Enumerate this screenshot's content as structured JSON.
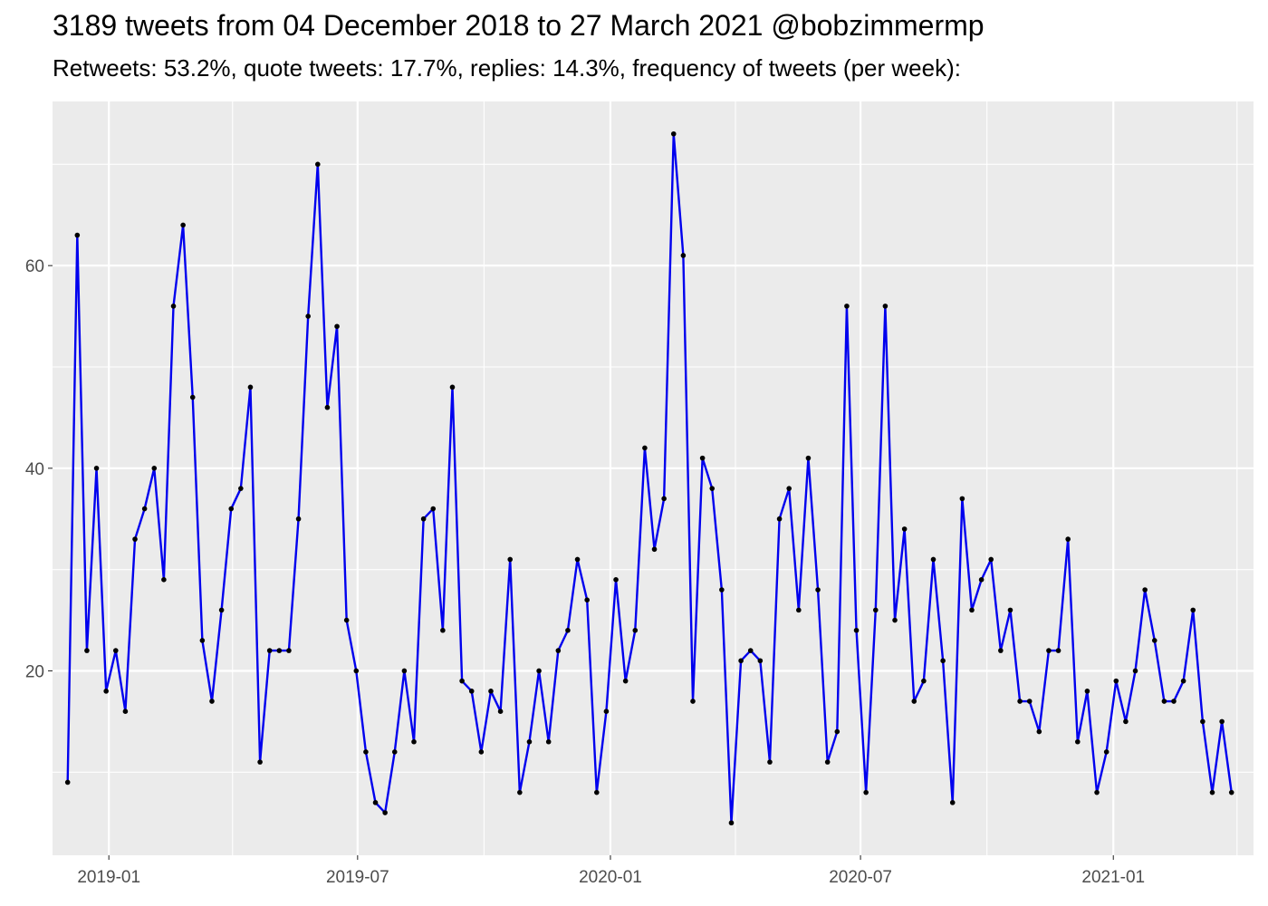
{
  "chart_data": {
    "type": "line",
    "title": "3189 tweets from 04 December 2018 to 27 March 2021 @bobzimmermp",
    "subtitle": "Retweets: 53.2%, quote tweets: 17.7%, replies: 14.3%, frequency of tweets (per week):",
    "xlabel": "",
    "ylabel": "",
    "x_start": "2018-12-02",
    "x_step_days": 7,
    "x_range": [
      "2018-11-21",
      "2021-04-13"
    ],
    "ylim": [
      1.8,
      76.2
    ],
    "y_ticks": [
      20,
      40,
      60
    ],
    "x_ticks": [
      {
        "date": "2019-01-01",
        "label": "2019-01"
      },
      {
        "date": "2019-07-01",
        "label": "2019-07"
      },
      {
        "date": "2020-01-01",
        "label": "2020-01"
      },
      {
        "date": "2020-07-01",
        "label": "2020-07"
      },
      {
        "date": "2021-01-01",
        "label": "2021-01"
      }
    ],
    "x_minor_ticks": [
      "2018-10-01",
      "2019-04-01",
      "2019-10-01",
      "2020-04-01",
      "2020-10-01",
      "2021-04-01"
    ],
    "grid": true,
    "line_color": "#0000ee",
    "point_color": "#000000",
    "panel_color": "#ebebeb",
    "values": [
      9,
      63,
      22,
      40,
      18,
      22,
      16,
      33,
      36,
      40,
      29,
      56,
      64,
      47,
      23,
      17,
      26,
      36,
      38,
      48,
      11,
      22,
      22,
      22,
      35,
      55,
      70,
      46,
      54,
      25,
      20,
      12,
      7,
      6,
      12,
      20,
      13,
      35,
      36,
      24,
      48,
      19,
      18,
      12,
      18,
      16,
      31,
      8,
      13,
      20,
      13,
      22,
      24,
      31,
      27,
      8,
      16,
      29,
      19,
      24,
      42,
      32,
      37,
      73,
      61,
      17,
      41,
      38,
      28,
      5,
      21,
      22,
      21,
      11,
      35,
      38,
      26,
      41,
      28,
      11,
      14,
      56,
      24,
      8,
      26,
      56,
      25,
      34,
      17,
      19,
      31,
      21,
      7,
      37,
      26,
      29,
      31,
      22,
      26,
      17,
      17,
      14,
      22,
      22,
      33,
      13,
      18,
      8,
      12,
      19,
      15,
      20,
      28,
      23,
      17,
      17,
      19,
      26,
      15,
      8,
      15,
      8
    ]
  }
}
